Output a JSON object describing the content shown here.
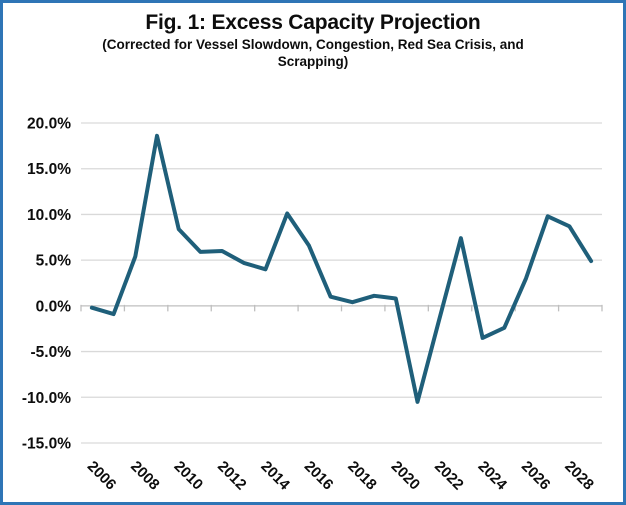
{
  "chart_data": {
    "type": "line",
    "title": "Fig. 1: Excess Capacity Projection",
    "subtitle": "(Corrected for Vessel Slowdown, Congestion, Red Sea Crisis, and Scrapping)",
    "x": [
      2005,
      2006,
      2007,
      2008,
      2009,
      2010,
      2011,
      2012,
      2013,
      2014,
      2015,
      2016,
      2017,
      2018,
      2019,
      2020,
      2021,
      2022,
      2023,
      2024,
      2025,
      2026,
      2027,
      2028
    ],
    "values": [
      -0.2,
      -0.9,
      5.4,
      18.6,
      8.4,
      5.9,
      6.0,
      4.7,
      4.0,
      10.1,
      6.6,
      1.0,
      0.4,
      1.1,
      0.8,
      -10.5,
      -1.5,
      7.4,
      -3.5,
      -2.4,
      3.0,
      9.8,
      8.7,
      4.9
    ],
    "ylim": [
      -15,
      20
    ],
    "yticks": [
      20,
      15,
      10,
      5,
      0,
      -5,
      -10,
      -15
    ],
    "ytick_labels": [
      "20.0%",
      "15.0%",
      "10.0%",
      "5.0%",
      "0.0%",
      "-5.0%",
      "-10.0%",
      "-15.0%"
    ],
    "xtick_labels": [
      "2006",
      "2008",
      "2010",
      "2012",
      "2014",
      "2016",
      "2018",
      "2020",
      "2022",
      "2024",
      "2026",
      "2028"
    ],
    "grid": true,
    "legend": "none",
    "unit": "%",
    "colors": {
      "line": "#1F5F7A",
      "gridline": "#D9D9D9",
      "axis": "#BFBFBF",
      "text": "#0D0D0D",
      "window_border": "#2E75B6",
      "background": "#FFFFFF"
    }
  }
}
